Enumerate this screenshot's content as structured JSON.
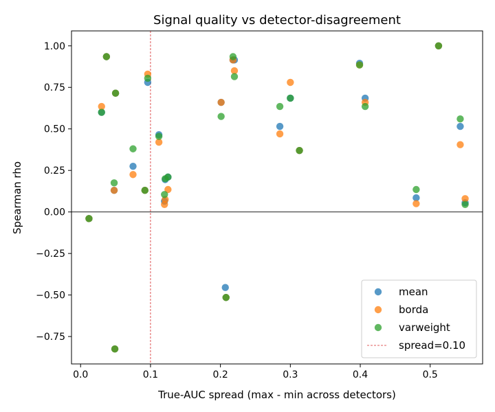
{
  "chart_data": {
    "type": "scatter",
    "title": "Signal quality vs detector-disagreement",
    "xlabel": "True-AUC spread (max - min across detectors)",
    "ylabel": "Spearman rho",
    "xlim": [
      -0.013,
      0.575
    ],
    "ylim": [
      -0.915,
      1.09
    ],
    "x_ticks": [
      0.0,
      0.1,
      0.2,
      0.3,
      0.4,
      0.5
    ],
    "x_tick_labels": [
      "0.0",
      "0.1",
      "0.2",
      "0.3",
      "0.4",
      "0.5"
    ],
    "y_ticks": [
      -0.75,
      -0.5,
      -0.25,
      0.0,
      0.25,
      0.5,
      0.75,
      1.0
    ],
    "y_tick_labels": [
      "−0.75",
      "−0.50",
      "−0.25",
      "0.00",
      "0.25",
      "0.50",
      "0.75",
      "1.00"
    ],
    "grid": false,
    "legend_position": "bottom-right",
    "hline": {
      "y": 0.0,
      "color": "#000000"
    },
    "vline": {
      "x": 0.1,
      "label": "spread=0.10",
      "color": "#d62728",
      "style": "dashed"
    },
    "series": [
      {
        "name": "mean",
        "color": "#1f77b4",
        "points": [
          [
            0.012,
            -0.04
          ],
          [
            0.03,
            0.6
          ],
          [
            0.037,
            0.935
          ],
          [
            0.048,
            0.13
          ],
          [
            0.049,
            -0.825
          ],
          [
            0.05,
            0.715
          ],
          [
            0.075,
            0.275
          ],
          [
            0.092,
            0.13
          ],
          [
            0.096,
            0.78
          ],
          [
            0.112,
            0.465
          ],
          [
            0.12,
            0.065
          ],
          [
            0.121,
            0.195
          ],
          [
            0.125,
            0.21
          ],
          [
            0.201,
            0.66
          ],
          [
            0.207,
            -0.455
          ],
          [
            0.208,
            -0.515
          ],
          [
            0.218,
            0.915
          ],
          [
            0.22,
            0.915
          ],
          [
            0.285,
            0.515
          ],
          [
            0.3,
            0.685
          ],
          [
            0.313,
            0.37
          ],
          [
            0.399,
            0.895
          ],
          [
            0.407,
            0.685
          ],
          [
            0.48,
            0.085
          ],
          [
            0.512,
            1.0
          ],
          [
            0.543,
            0.515
          ],
          [
            0.55,
            0.055
          ]
        ]
      },
      {
        "name": "borda",
        "color": "#ff7f0e",
        "points": [
          [
            0.012,
            -0.04
          ],
          [
            0.03,
            0.635
          ],
          [
            0.037,
            0.935
          ],
          [
            0.048,
            0.13
          ],
          [
            0.049,
            -0.825
          ],
          [
            0.05,
            0.715
          ],
          [
            0.075,
            0.225
          ],
          [
            0.092,
            0.13
          ],
          [
            0.096,
            0.83
          ],
          [
            0.112,
            0.42
          ],
          [
            0.12,
            0.045
          ],
          [
            0.121,
            0.075
          ],
          [
            0.125,
            0.135
          ],
          [
            0.201,
            0.66
          ],
          [
            0.208,
            -0.515
          ],
          [
            0.218,
            0.915
          ],
          [
            0.22,
            0.85
          ],
          [
            0.285,
            0.47
          ],
          [
            0.3,
            0.78
          ],
          [
            0.313,
            0.37
          ],
          [
            0.399,
            0.885
          ],
          [
            0.407,
            0.66
          ],
          [
            0.48,
            0.05
          ],
          [
            0.512,
            1.0
          ],
          [
            0.543,
            0.405
          ],
          [
            0.55,
            0.08
          ]
        ]
      },
      {
        "name": "varweight",
        "color": "#2ca02c",
        "points": [
          [
            0.012,
            -0.04
          ],
          [
            0.03,
            0.6
          ],
          [
            0.037,
            0.935
          ],
          [
            0.048,
            0.175
          ],
          [
            0.049,
            -0.825
          ],
          [
            0.05,
            0.715
          ],
          [
            0.075,
            0.38
          ],
          [
            0.092,
            0.13
          ],
          [
            0.096,
            0.805
          ],
          [
            0.112,
            0.455
          ],
          [
            0.12,
            0.105
          ],
          [
            0.121,
            0.2
          ],
          [
            0.125,
            0.21
          ],
          [
            0.201,
            0.575
          ],
          [
            0.208,
            -0.515
          ],
          [
            0.218,
            0.935
          ],
          [
            0.22,
            0.815
          ],
          [
            0.285,
            0.635
          ],
          [
            0.3,
            0.685
          ],
          [
            0.313,
            0.37
          ],
          [
            0.399,
            0.885
          ],
          [
            0.407,
            0.635
          ],
          [
            0.48,
            0.135
          ],
          [
            0.512,
            1.0
          ],
          [
            0.543,
            0.56
          ],
          [
            0.55,
            0.045
          ]
        ]
      }
    ]
  }
}
